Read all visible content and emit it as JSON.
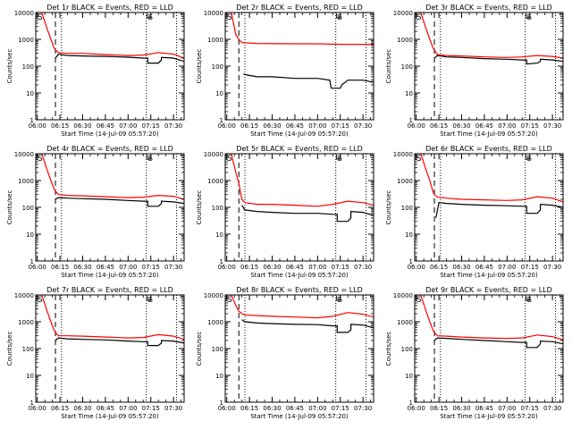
{
  "figure": {
    "xlabel": "Start Time (14-Jul-09 05:57:20)",
    "ylabel": "Counts/sec",
    "x_ticks": [
      "06:00",
      "06:15",
      "06:30",
      "06:45",
      "07:00",
      "07:15",
      "07:30"
    ],
    "y_ticks": [
      "1",
      "10",
      "100",
      "1000",
      "10000"
    ],
    "marker_S": "S",
    "marker_E": "E"
  },
  "chart_data": [
    {
      "type": "line",
      "title": "Det 1r BLACK = Events, RED = LLD",
      "xlabel": "Start Time (14-Jul-09 05:57:20)",
      "ylabel": "Counts/sec",
      "ylim": [
        1,
        10000
      ],
      "log_y": true,
      "x_range": [
        "05:59",
        "07:37"
      ],
      "vlines_dashed": [
        "06:12"
      ],
      "vlines_dotted": [
        "06:16",
        "07:12",
        "07:32"
      ],
      "series": [
        {
          "name": "BLACK = Events",
          "color": "#000000",
          "x": [
            "06:12",
            "06:14",
            "06:20",
            "06:30",
            "06:45",
            "07:00",
            "07:10",
            "07:13",
            "07:13",
            "07:20",
            "07:22",
            "07:22",
            "07:30",
            "07:37"
          ],
          "y": [
            200,
            280,
            250,
            240,
            230,
            215,
            200,
            200,
            130,
            130,
            170,
            210,
            200,
            150
          ]
        },
        {
          "name": "RED = LLD",
          "color": "#ff0000",
          "x": [
            "05:59",
            "06:03",
            "06:06",
            "06:09",
            "06:11",
            "06:12",
            "06:14",
            "06:20",
            "06:30",
            "06:45",
            "07:00",
            "07:10",
            "07:20",
            "07:30",
            "07:37"
          ],
          "y": [
            10000,
            10000,
            3000,
            1000,
            500,
            400,
            320,
            300,
            300,
            270,
            250,
            260,
            320,
            280,
            200
          ]
        }
      ]
    },
    {
      "type": "line",
      "title": "Det 2r BLACK = Events, RED = LLD",
      "xlabel": "Start Time (14-Jul-09 05:57:20)",
      "ylabel": "Counts/sec",
      "ylim": [
        1,
        10000
      ],
      "log_y": true,
      "x_range": [
        "05:59",
        "07:37"
      ],
      "vlines_dashed": [
        "06:08"
      ],
      "vlines_dotted": [
        "06:12",
        "07:12",
        "07:32"
      ],
      "series": [
        {
          "name": "BLACK = Events",
          "color": "#000000",
          "x": [
            "06:11",
            "06:15",
            "06:20",
            "06:30",
            "06:45",
            "07:00",
            "07:08",
            "07:09",
            "07:15",
            "07:16",
            "07:20",
            "07:30",
            "07:37"
          ],
          "y": [
            50,
            45,
            40,
            40,
            35,
            35,
            30,
            15,
            15,
            20,
            30,
            30,
            25
          ]
        },
        {
          "name": "RED = LLD",
          "color": "#ff0000",
          "x": [
            "05:59",
            "06:03",
            "06:06",
            "06:08",
            "06:10",
            "06:20",
            "06:45",
            "07:00",
            "07:15",
            "07:30",
            "07:37"
          ],
          "y": [
            10000,
            10000,
            1500,
            1000,
            750,
            700,
            680,
            680,
            650,
            650,
            650
          ]
        }
      ]
    },
    {
      "type": "line",
      "title": "Det 3r BLACK = Events, RED = LLD",
      "xlabel": "Start Time (14-Jul-09 05:57:20)",
      "ylabel": "Counts/sec",
      "ylim": [
        1,
        10000
      ],
      "log_y": true,
      "x_range": [
        "05:59",
        "07:37"
      ],
      "vlines_dashed": [
        "06:12"
      ],
      "vlines_dotted": [
        "06:16",
        "07:12",
        "07:32"
      ],
      "series": [
        {
          "name": "BLACK = Events",
          "color": "#000000",
          "x": [
            "06:12",
            "06:14",
            "06:20",
            "06:30",
            "06:45",
            "07:00",
            "07:10",
            "07:13",
            "07:13",
            "07:20",
            "07:22",
            "07:22",
            "07:30",
            "07:37"
          ],
          "y": [
            200,
            250,
            220,
            210,
            190,
            180,
            170,
            170,
            120,
            130,
            150,
            180,
            170,
            150
          ]
        },
        {
          "name": "RED = LLD",
          "color": "#ff0000",
          "x": [
            "05:59",
            "06:03",
            "06:06",
            "06:09",
            "06:11",
            "06:12",
            "06:14",
            "06:20",
            "06:30",
            "06:45",
            "07:00",
            "07:10",
            "07:20",
            "07:30",
            "07:37"
          ],
          "y": [
            10000,
            10000,
            3000,
            1000,
            500,
            400,
            270,
            250,
            240,
            220,
            210,
            220,
            250,
            230,
            200
          ]
        }
      ]
    },
    {
      "type": "line",
      "title": "Det 4r BLACK = Events, RED = LLD",
      "xlabel": "Start Time (14-Jul-09 05:57:20)",
      "ylabel": "Counts/sec",
      "ylim": [
        1,
        10000
      ],
      "log_y": true,
      "x_range": [
        "05:59",
        "07:37"
      ],
      "vlines_dashed": [
        "06:12"
      ],
      "vlines_dotted": [
        "06:16",
        "07:12",
        "07:32"
      ],
      "series": [
        {
          "name": "BLACK = Events",
          "color": "#000000",
          "x": [
            "06:12",
            "06:14",
            "06:20",
            "06:30",
            "06:45",
            "07:00",
            "07:10",
            "07:13",
            "07:13",
            "07:20",
            "07:22",
            "07:22",
            "07:30",
            "07:37"
          ],
          "y": [
            200,
            230,
            220,
            210,
            200,
            180,
            170,
            170,
            110,
            110,
            140,
            170,
            160,
            140
          ]
        },
        {
          "name": "RED = LLD",
          "color": "#ff0000",
          "x": [
            "05:59",
            "06:03",
            "06:06",
            "06:09",
            "06:11",
            "06:12",
            "06:14",
            "06:20",
            "06:30",
            "06:45",
            "07:00",
            "07:10",
            "07:20",
            "07:30",
            "07:37"
          ],
          "y": [
            10000,
            10000,
            3000,
            1000,
            500,
            400,
            300,
            280,
            270,
            250,
            230,
            240,
            280,
            260,
            200
          ]
        }
      ]
    },
    {
      "type": "line",
      "title": "Det 5r BLACK = Events, RED = LLD",
      "xlabel": "Start Time (14-Jul-09 05:57:20)",
      "ylabel": "Counts/sec",
      "ylim": [
        1,
        10000
      ],
      "log_y": true,
      "x_range": [
        "05:59",
        "07:37"
      ],
      "vlines_dashed": [
        "06:08"
      ],
      "vlines_dotted": [
        "06:12",
        "07:12",
        "07:32"
      ],
      "series": [
        {
          "name": "BLACK = Events",
          "color": "#000000",
          "x": [
            "06:10",
            "06:12",
            "06:20",
            "06:30",
            "06:45",
            "07:00",
            "07:10",
            "07:13",
            "07:13",
            "07:20",
            "07:22",
            "07:22",
            "07:30",
            "07:37"
          ],
          "y": [
            120,
            80,
            70,
            65,
            60,
            60,
            55,
            55,
            30,
            30,
            40,
            70,
            65,
            50
          ]
        },
        {
          "name": "RED = LLD",
          "color": "#ff0000",
          "x": [
            "05:59",
            "06:03",
            "06:06",
            "06:08",
            "06:10",
            "06:12",
            "06:20",
            "06:30",
            "06:45",
            "07:00",
            "07:10",
            "07:20",
            "07:30",
            "07:37"
          ],
          "y": [
            10000,
            10000,
            2000,
            800,
            200,
            150,
            130,
            130,
            120,
            110,
            130,
            170,
            150,
            120
          ]
        }
      ]
    },
    {
      "type": "line",
      "title": "Det 6r BLACK = Events, RED = LLD",
      "xlabel": "Start Time (14-Jul-09 05:57:20)",
      "ylabel": "Counts/sec",
      "ylim": [
        1,
        10000
      ],
      "log_y": true,
      "x_range": [
        "05:59",
        "07:37"
      ],
      "vlines_dashed": [
        "06:12"
      ],
      "vlines_dotted": [
        "06:16",
        "07:12",
        "07:32"
      ],
      "series": [
        {
          "name": "BLACK = Events",
          "color": "#000000",
          "x": [
            "06:13",
            "06:15",
            "06:20",
            "06:30",
            "06:45",
            "07:00",
            "07:10",
            "07:13",
            "07:13",
            "07:20",
            "07:22",
            "07:22",
            "07:30",
            "07:37"
          ],
          "y": [
            40,
            150,
            140,
            130,
            120,
            115,
            110,
            110,
            60,
            60,
            80,
            130,
            120,
            100
          ]
        },
        {
          "name": "RED = LLD",
          "color": "#ff0000",
          "x": [
            "05:59",
            "06:03",
            "06:06",
            "06:09",
            "06:11",
            "06:12",
            "06:14",
            "06:20",
            "06:30",
            "06:45",
            "07:00",
            "07:10",
            "07:20",
            "07:30",
            "07:37"
          ],
          "y": [
            10000,
            10000,
            3000,
            1000,
            400,
            300,
            240,
            220,
            200,
            190,
            180,
            190,
            250,
            220,
            160
          ]
        }
      ]
    },
    {
      "type": "line",
      "title": "Det 7r BLACK = Events, RED = LLD",
      "xlabel": "Start Time (14-Jul-09 05:57:20)",
      "ylabel": "Counts/sec",
      "ylim": [
        1,
        10000
      ],
      "log_y": true,
      "x_range": [
        "05:59",
        "07:37"
      ],
      "vlines_dashed": [
        "06:12"
      ],
      "vlines_dotted": [
        "06:16",
        "07:12",
        "07:32"
      ],
      "series": [
        {
          "name": "BLACK = Events",
          "color": "#000000",
          "x": [
            "06:12",
            "06:14",
            "06:20",
            "06:30",
            "06:45",
            "07:00",
            "07:10",
            "07:13",
            "07:13",
            "07:20",
            "07:22",
            "07:22",
            "07:30",
            "07:37"
          ],
          "y": [
            200,
            250,
            230,
            220,
            210,
            190,
            180,
            180,
            130,
            130,
            160,
            200,
            190,
            160
          ]
        },
        {
          "name": "RED = LLD",
          "color": "#ff0000",
          "x": [
            "05:59",
            "06:03",
            "06:06",
            "06:09",
            "06:11",
            "06:12",
            "06:14",
            "06:20",
            "06:30",
            "06:45",
            "07:00",
            "07:10",
            "07:20",
            "07:30",
            "07:37"
          ],
          "y": [
            10000,
            10000,
            3000,
            1000,
            500,
            400,
            300,
            300,
            290,
            270,
            250,
            260,
            330,
            290,
            220
          ]
        }
      ]
    },
    {
      "type": "line",
      "title": "Det 8r BLACK = Events, RED = LLD",
      "xlabel": "Start Time (14-Jul-09 05:57:20)",
      "ylabel": "Counts/sec",
      "ylim": [
        1,
        10000
      ],
      "log_y": true,
      "x_range": [
        "05:59",
        "07:37"
      ],
      "vlines_dashed": [
        "06:08"
      ],
      "vlines_dotted": [
        "06:12",
        "07:12",
        "07:32"
      ],
      "series": [
        {
          "name": "BLACK = Events",
          "color": "#000000",
          "x": [
            "06:10",
            "06:12",
            "06:20",
            "06:30",
            "06:45",
            "07:00",
            "07:10",
            "07:13",
            "07:13",
            "07:20",
            "07:22",
            "07:22",
            "07:30",
            "07:37"
          ],
          "y": [
            1200,
            1000,
            900,
            850,
            800,
            780,
            700,
            700,
            400,
            400,
            500,
            800,
            750,
            600
          ]
        },
        {
          "name": "RED = LLD",
          "color": "#ff0000",
          "x": [
            "05:59",
            "06:03",
            "06:06",
            "06:08",
            "06:10",
            "06:12",
            "06:20",
            "06:30",
            "06:45",
            "07:00",
            "07:10",
            "07:20",
            "07:30",
            "07:37"
          ],
          "y": [
            10000,
            10000,
            4000,
            2500,
            2000,
            1800,
            1700,
            1600,
            1500,
            1400,
            1600,
            2200,
            1900,
            1500
          ]
        }
      ]
    },
    {
      "type": "line",
      "title": "Det 9r BLACK = Events, RED = LLD",
      "xlabel": "Start Time (14-Jul-09 05:57:20)",
      "ylabel": "Counts/sec",
      "ylim": [
        1,
        10000
      ],
      "log_y": true,
      "x_range": [
        "05:59",
        "07:37"
      ],
      "vlines_dashed": [
        "06:12"
      ],
      "vlines_dotted": [
        "06:16",
        "07:12",
        "07:32"
      ],
      "series": [
        {
          "name": "BLACK = Events",
          "color": "#000000",
          "x": [
            "06:12",
            "06:14",
            "06:20",
            "06:30",
            "06:45",
            "07:00",
            "07:10",
            "07:13",
            "07:13",
            "07:20",
            "07:22",
            "07:22",
            "07:30",
            "07:37"
          ],
          "y": [
            200,
            250,
            240,
            220,
            200,
            180,
            170,
            170,
            110,
            110,
            150,
            190,
            180,
            150
          ]
        },
        {
          "name": "RED = LLD",
          "color": "#ff0000",
          "x": [
            "05:59",
            "06:03",
            "06:06",
            "06:09",
            "06:11",
            "06:12",
            "06:14",
            "06:20",
            "06:30",
            "06:45",
            "07:00",
            "07:10",
            "07:20",
            "07:30",
            "07:37"
          ],
          "y": [
            10000,
            10000,
            3000,
            1000,
            500,
            400,
            300,
            290,
            270,
            250,
            240,
            250,
            320,
            280,
            210
          ]
        }
      ]
    }
  ]
}
